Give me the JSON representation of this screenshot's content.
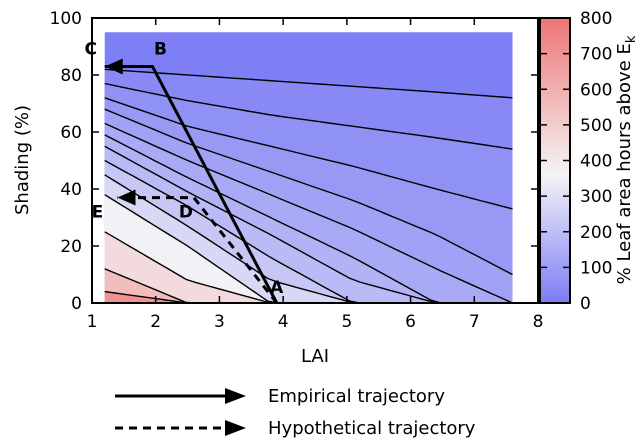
{
  "chart_data": {
    "type": "heatmap",
    "xlabel": "LAI",
    "ylabel": "Shading (%)",
    "xlim": [
      1,
      8
    ],
    "ylim": [
      0,
      100
    ],
    "x_ticks": [
      "1",
      "2",
      "3",
      "4",
      "5",
      "6",
      "7",
      "8"
    ],
    "y_ticks": [
      "0",
      "20",
      "40",
      "60",
      "80",
      "100"
    ],
    "data_extent": {
      "x": [
        1.2,
        7.6
      ],
      "y": [
        0,
        95
      ]
    },
    "colorbar": {
      "label": "% Leaf area hours above E",
      "label_subscript": "k",
      "range": [
        0,
        800
      ],
      "ticks": [
        "0",
        "100",
        "200",
        "300",
        "400",
        "500",
        "600",
        "700",
        "800"
      ],
      "colors": {
        "low": "#7b7cf5",
        "mid": "#f4f4f6",
        "high": "#ee7575"
      }
    },
    "contour_levels": [
      {
        "value": 25,
        "y_at_lai": [
          82,
          80,
          78,
          76,
          74,
          72
        ]
      },
      {
        "value": 50,
        "y_at_lai": [
          77,
          71,
          66,
          62,
          58,
          54
        ]
      },
      {
        "value": 75,
        "y_at_lai": [
          72,
          62,
          55,
          48,
          40,
          33
        ]
      },
      {
        "value": 100,
        "y_at_lai": [
          68,
          56,
          46,
          36,
          24,
          10
        ]
      },
      {
        "value": 125,
        "y_at_lai": [
          63,
          50,
          38,
          26,
          12,
          0
        ]
      },
      {
        "value": 150,
        "y_at_lai": [
          59,
          44,
          30,
          16,
          0,
          0
        ]
      },
      {
        "value": 175,
        "y_at_lai": [
          55,
          39,
          24,
          8,
          0,
          0
        ]
      },
      {
        "value": 200,
        "y_at_lai": [
          50,
          34,
          16,
          0,
          0,
          0
        ]
      },
      {
        "value": 250,
        "y_at_lai": [
          45,
          27,
          8,
          0,
          0,
          0
        ]
      },
      {
        "value": 300,
        "y_at_lai": [
          38,
          20,
          0,
          0,
          0,
          0
        ]
      },
      {
        "value": 400,
        "y_at_lai": [
          25,
          8,
          0,
          0,
          0,
          0
        ]
      },
      {
        "value": 500,
        "y_at_lai": [
          12,
          0,
          0,
          0,
          0,
          0
        ]
      },
      {
        "value": 600,
        "y_at_lai": [
          4,
          0,
          0,
          0,
          0,
          0
        ]
      }
    ],
    "contour_lai_grid": [
      1.2,
      2.5,
      3.8,
      5.1,
      6.4,
      7.6
    ],
    "points": [
      {
        "label": "A",
        "x": 3.9,
        "y": 0
      },
      {
        "label": "B",
        "x": 1.95,
        "y": 83
      },
      {
        "label": "C",
        "x": 1.2,
        "y": 83
      },
      {
        "label": "D",
        "x": 2.6,
        "y": 37
      },
      {
        "label": "E",
        "x": 1.4,
        "y": 37
      }
    ],
    "trajectories": [
      {
        "name": "Empirical trajectory",
        "style": "solid",
        "path": [
          "A",
          "B",
          "C"
        ]
      },
      {
        "name": "Hypothetical trajectory",
        "style": "dashed",
        "path": [
          "A",
          "D",
          "E"
        ]
      }
    ]
  },
  "legend": {
    "empirical_label": "Empirical trajectory",
    "hypothetical_label": "Hypothetical trajectory"
  }
}
